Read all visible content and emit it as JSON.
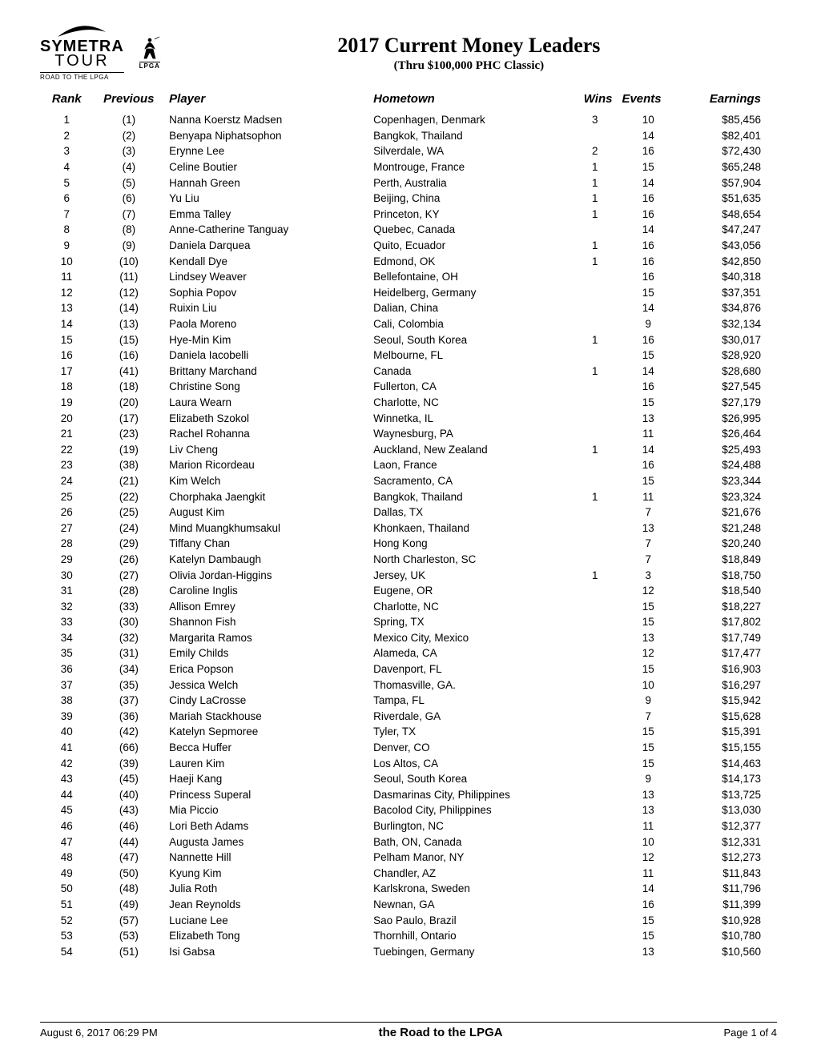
{
  "logos": {
    "symetra": "SYMETRA",
    "tour": "TOUR",
    "road": "ROAD TO THE LPGA",
    "lpga": "LPGA"
  },
  "title": "2017 Current Money Leaders",
  "subtitle": "(Thru $100,000 PHC Classic)",
  "columns": {
    "rank": "Rank",
    "previous": "Previous",
    "player": "Player",
    "hometown": "Hometown",
    "wins": "Wins",
    "events": "Events",
    "earnings": "Earnings"
  },
  "rows": [
    {
      "rank": "1",
      "prev": "(1)",
      "player": "Nanna Koerstz Madsen",
      "home": "Copenhagen, Denmark",
      "wins": "3",
      "events": "10",
      "earn": "$85,456"
    },
    {
      "rank": "2",
      "prev": "(2)",
      "player": "Benyapa Niphatsophon",
      "home": "Bangkok, Thailand",
      "wins": "",
      "events": "14",
      "earn": "$82,401"
    },
    {
      "rank": "3",
      "prev": "(3)",
      "player": "Erynne Lee",
      "home": "Silverdale, WA",
      "wins": "2",
      "events": "16",
      "earn": "$72,430"
    },
    {
      "rank": "4",
      "prev": "(4)",
      "player": "Celine Boutier",
      "home": "Montrouge, France",
      "wins": "1",
      "events": "15",
      "earn": "$65,248"
    },
    {
      "rank": "5",
      "prev": "(5)",
      "player": "Hannah Green",
      "home": "Perth, Australia",
      "wins": "1",
      "events": "14",
      "earn": "$57,904"
    },
    {
      "rank": "6",
      "prev": "(6)",
      "player": "Yu Liu",
      "home": "Beijing, China",
      "wins": "1",
      "events": "16",
      "earn": "$51,635"
    },
    {
      "rank": "7",
      "prev": "(7)",
      "player": "Emma Talley",
      "home": "Princeton, KY",
      "wins": "1",
      "events": "16",
      "earn": "$48,654"
    },
    {
      "rank": "8",
      "prev": "(8)",
      "player": "Anne-Catherine Tanguay",
      "home": "Quebec, Canada",
      "wins": "",
      "events": "14",
      "earn": "$47,247"
    },
    {
      "rank": "9",
      "prev": "(9)",
      "player": "Daniela Darquea",
      "home": "Quito, Ecuador",
      "wins": "1",
      "events": "16",
      "earn": "$43,056"
    },
    {
      "rank": "10",
      "prev": "(10)",
      "player": "Kendall Dye",
      "home": "Edmond, OK",
      "wins": "1",
      "events": "16",
      "earn": "$42,850"
    },
    {
      "rank": "11",
      "prev": "(11)",
      "player": "Lindsey Weaver",
      "home": "Bellefontaine, OH",
      "wins": "",
      "events": "16",
      "earn": "$40,318"
    },
    {
      "rank": "12",
      "prev": "(12)",
      "player": "Sophia Popov",
      "home": "Heidelberg, Germany",
      "wins": "",
      "events": "15",
      "earn": "$37,351"
    },
    {
      "rank": "13",
      "prev": "(14)",
      "player": "Ruixin Liu",
      "home": "Dalian, China",
      "wins": "",
      "events": "14",
      "earn": "$34,876"
    },
    {
      "rank": "14",
      "prev": "(13)",
      "player": "Paola Moreno",
      "home": "Cali, Colombia",
      "wins": "",
      "events": "9",
      "earn": "$32,134"
    },
    {
      "rank": "15",
      "prev": "(15)",
      "player": "Hye-Min Kim",
      "home": "Seoul, South Korea",
      "wins": "1",
      "events": "16",
      "earn": "$30,017"
    },
    {
      "rank": "16",
      "prev": "(16)",
      "player": "Daniela Iacobelli",
      "home": "Melbourne, FL",
      "wins": "",
      "events": "15",
      "earn": "$28,920"
    },
    {
      "rank": "17",
      "prev": "(41)",
      "player": "Brittany Marchand",
      "home": "Canada",
      "wins": "1",
      "events": "14",
      "earn": "$28,680"
    },
    {
      "rank": "18",
      "prev": "(18)",
      "player": "Christine Song",
      "home": "Fullerton, CA",
      "wins": "",
      "events": "16",
      "earn": "$27,545"
    },
    {
      "rank": "19",
      "prev": "(20)",
      "player": "Laura Wearn",
      "home": "Charlotte, NC",
      "wins": "",
      "events": "15",
      "earn": "$27,179"
    },
    {
      "rank": "20",
      "prev": "(17)",
      "player": "Elizabeth Szokol",
      "home": "Winnetka, IL",
      "wins": "",
      "events": "13",
      "earn": "$26,995"
    },
    {
      "rank": "21",
      "prev": "(23)",
      "player": "Rachel Rohanna",
      "home": "Waynesburg, PA",
      "wins": "",
      "events": "11",
      "earn": "$26,464"
    },
    {
      "rank": "22",
      "prev": "(19)",
      "player": "Liv Cheng",
      "home": "Auckland, New Zealand",
      "wins": "1",
      "events": "14",
      "earn": "$25,493"
    },
    {
      "rank": "23",
      "prev": "(38)",
      "player": "Marion Ricordeau",
      "home": "Laon, France",
      "wins": "",
      "events": "16",
      "earn": "$24,488"
    },
    {
      "rank": "24",
      "prev": "(21)",
      "player": "Kim Welch",
      "home": "Sacramento, CA",
      "wins": "",
      "events": "15",
      "earn": "$23,344"
    },
    {
      "rank": "25",
      "prev": "(22)",
      "player": "Chorphaka Jaengkit",
      "home": "Bangkok, Thailand",
      "wins": "1",
      "events": "11",
      "earn": "$23,324"
    },
    {
      "rank": "26",
      "prev": "(25)",
      "player": "August Kim",
      "home": "Dallas, TX",
      "wins": "",
      "events": "7",
      "earn": "$21,676"
    },
    {
      "rank": "27",
      "prev": "(24)",
      "player": "Mind Muangkhumsakul",
      "home": "Khonkaen, Thailand",
      "wins": "",
      "events": "13",
      "earn": "$21,248"
    },
    {
      "rank": "28",
      "prev": "(29)",
      "player": "Tiffany Chan",
      "home": "Hong Kong",
      "wins": "",
      "events": "7",
      "earn": "$20,240"
    },
    {
      "rank": "29",
      "prev": "(26)",
      "player": "Katelyn Dambaugh",
      "home": "North Charleston, SC",
      "wins": "",
      "events": "7",
      "earn": "$18,849"
    },
    {
      "rank": "30",
      "prev": "(27)",
      "player": "Olivia Jordan-Higgins",
      "home": "Jersey, UK",
      "wins": "1",
      "events": "3",
      "earn": "$18,750"
    },
    {
      "rank": "31",
      "prev": "(28)",
      "player": "Caroline Inglis",
      "home": "Eugene, OR",
      "wins": "",
      "events": "12",
      "earn": "$18,540"
    },
    {
      "rank": "32",
      "prev": "(33)",
      "player": "Allison Emrey",
      "home": "Charlotte, NC",
      "wins": "",
      "events": "15",
      "earn": "$18,227"
    },
    {
      "rank": "33",
      "prev": "(30)",
      "player": "Shannon Fish",
      "home": "Spring, TX",
      "wins": "",
      "events": "15",
      "earn": "$17,802"
    },
    {
      "rank": "34",
      "prev": "(32)",
      "player": "Margarita Ramos",
      "home": "Mexico City, Mexico",
      "wins": "",
      "events": "13",
      "earn": "$17,749"
    },
    {
      "rank": "35",
      "prev": "(31)",
      "player": "Emily Childs",
      "home": "Alameda, CA",
      "wins": "",
      "events": "12",
      "earn": "$17,477"
    },
    {
      "rank": "36",
      "prev": "(34)",
      "player": "Erica Popson",
      "home": "Davenport, FL",
      "wins": "",
      "events": "15",
      "earn": "$16,903"
    },
    {
      "rank": "37",
      "prev": "(35)",
      "player": "Jessica Welch",
      "home": "Thomasville, GA.",
      "wins": "",
      "events": "10",
      "earn": "$16,297"
    },
    {
      "rank": "38",
      "prev": "(37)",
      "player": "Cindy LaCrosse",
      "home": "Tampa, FL",
      "wins": "",
      "events": "9",
      "earn": "$15,942"
    },
    {
      "rank": "39",
      "prev": "(36)",
      "player": "Mariah Stackhouse",
      "home": "Riverdale, GA",
      "wins": "",
      "events": "7",
      "earn": "$15,628"
    },
    {
      "rank": "40",
      "prev": "(42)",
      "player": "Katelyn Sepmoree",
      "home": "Tyler, TX",
      "wins": "",
      "events": "15",
      "earn": "$15,391"
    },
    {
      "rank": "41",
      "prev": "(66)",
      "player": "Becca Huffer",
      "home": "Denver, CO",
      "wins": "",
      "events": "15",
      "earn": "$15,155"
    },
    {
      "rank": "42",
      "prev": "(39)",
      "player": "Lauren Kim",
      "home": "Los Altos, CA",
      "wins": "",
      "events": "15",
      "earn": "$14,463"
    },
    {
      "rank": "43",
      "prev": "(45)",
      "player": "Haeji Kang",
      "home": "Seoul, South Korea",
      "wins": "",
      "events": "9",
      "earn": "$14,173"
    },
    {
      "rank": "44",
      "prev": "(40)",
      "player": "Princess Superal",
      "home": "Dasmarinas City, Philippines",
      "wins": "",
      "events": "13",
      "earn": "$13,725"
    },
    {
      "rank": "45",
      "prev": "(43)",
      "player": "Mia Piccio",
      "home": "Bacolod City, Philippines",
      "wins": "",
      "events": "13",
      "earn": "$13,030"
    },
    {
      "rank": "46",
      "prev": "(46)",
      "player": "Lori Beth Adams",
      "home": "Burlington, NC",
      "wins": "",
      "events": "11",
      "earn": "$12,377"
    },
    {
      "rank": "47",
      "prev": "(44)",
      "player": "Augusta James",
      "home": "Bath, ON, Canada",
      "wins": "",
      "events": "10",
      "earn": "$12,331"
    },
    {
      "rank": "48",
      "prev": "(47)",
      "player": "Nannette Hill",
      "home": "Pelham Manor, NY",
      "wins": "",
      "events": "12",
      "earn": "$12,273"
    },
    {
      "rank": "49",
      "prev": "(50)",
      "player": "Kyung Kim",
      "home": "Chandler, AZ",
      "wins": "",
      "events": "11",
      "earn": "$11,843"
    },
    {
      "rank": "50",
      "prev": "(48)",
      "player": "Julia Roth",
      "home": "Karlskrona, Sweden",
      "wins": "",
      "events": "14",
      "earn": "$11,796"
    },
    {
      "rank": "51",
      "prev": "(49)",
      "player": "Jean Reynolds",
      "home": "Newnan, GA",
      "wins": "",
      "events": "16",
      "earn": "$11,399"
    },
    {
      "rank": "52",
      "prev": "(57)",
      "player": "Luciane Lee",
      "home": "Sao Paulo, Brazil",
      "wins": "",
      "events": "15",
      "earn": "$10,928"
    },
    {
      "rank": "53",
      "prev": "(53)",
      "player": "Elizabeth Tong",
      "home": "Thornhill, Ontario",
      "wins": "",
      "events": "15",
      "earn": "$10,780"
    },
    {
      "rank": "54",
      "prev": "(51)",
      "player": "Isi Gabsa",
      "home": "Tuebingen, Germany",
      "wins": "",
      "events": "13",
      "earn": "$10,560"
    }
  ],
  "footer": {
    "left": "August 6, 2017  06:29 PM",
    "center": "the Road to the LPGA",
    "right": "Page 1 of 4"
  }
}
